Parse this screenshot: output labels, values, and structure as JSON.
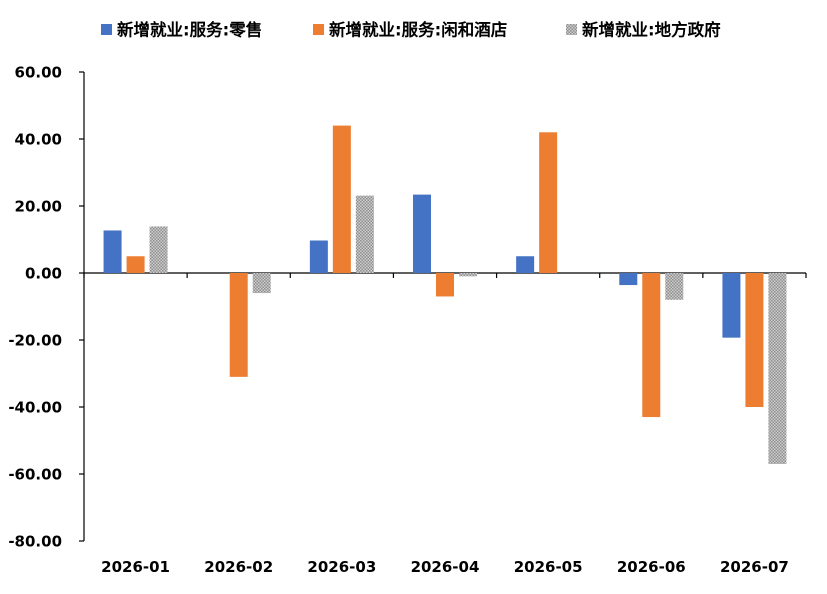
{
  "chart_data": {
    "type": "bar",
    "title": "",
    "xlabel": "",
    "ylabel": "",
    "categories": [
      "2026-01",
      "2026-02",
      "2026-03",
      "2026-04",
      "2026-05",
      "2026-06",
      "2026-07"
    ],
    "series": [
      {
        "name": "新增就业:服务:零售",
        "color": "#4472C4",
        "pattern": "solid",
        "values": [
          12.7,
          0,
          9.7,
          23.4,
          5.0,
          -3.6,
          -19.3
        ]
      },
      {
        "name": "新增就业:服务:闲和酒店",
        "color": "#ED7D31",
        "pattern": "solid",
        "values": [
          5.0,
          -31.0,
          44.0,
          -7.0,
          42.0,
          -43.0,
          -40.0
        ]
      },
      {
        "name": "新增就业:地方政府",
        "color": "#A5A5A5",
        "pattern": "dotted",
        "values": [
          13.9,
          -6.0,
          23.1,
          -1.0,
          0,
          -8.0,
          -57.0
        ]
      }
    ],
    "ylim": [
      -80,
      60
    ],
    "yticks": [
      60,
      40,
      20,
      0,
      -20,
      -40,
      -60,
      -80
    ],
    "ytick_labels": [
      "60.00",
      "40.00",
      "20.00",
      "0.00",
      "-20.00",
      "-40.00",
      "-60.00",
      "-80.00"
    ],
    "grid": false,
    "legend_position": "top"
  }
}
